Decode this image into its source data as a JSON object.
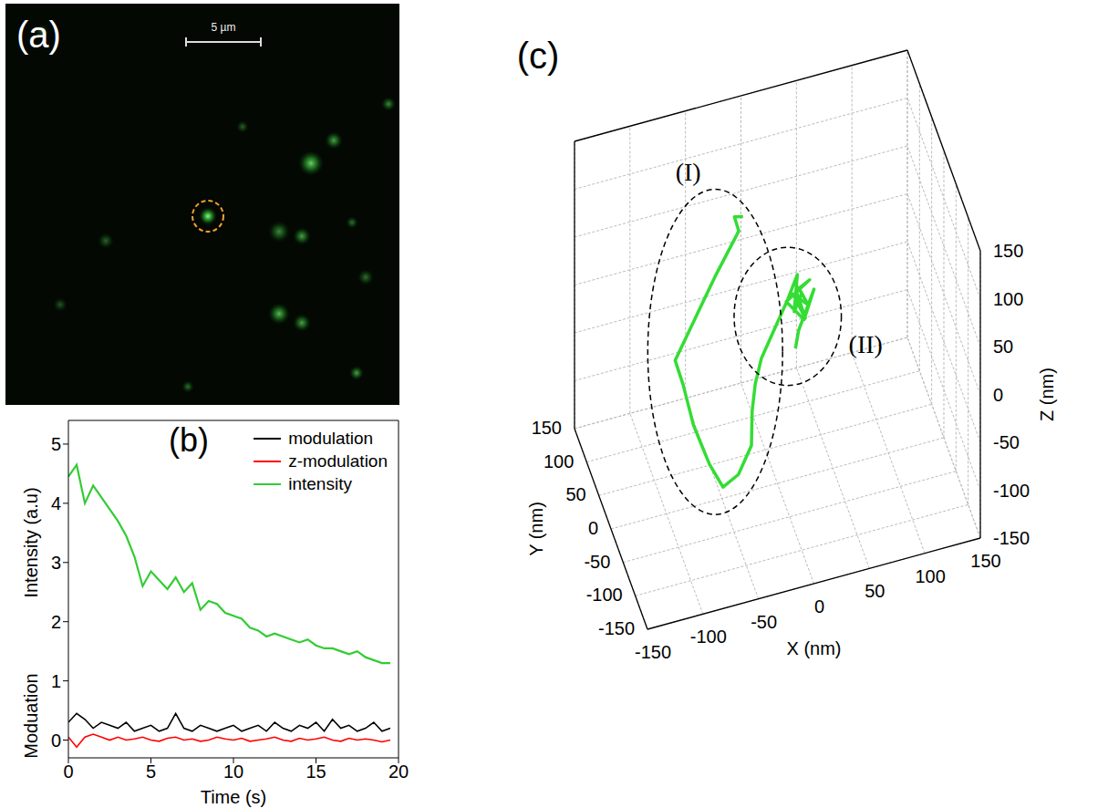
{
  "chart_data": [
    {
      "type": "image",
      "label": "(a)",
      "scale_bar": "5 µm"
    },
    {
      "type": "line",
      "label": "(b)",
      "x_label": "Time (s)",
      "y_labels": [
        "Intensity (a.u)",
        "Moduation"
      ],
      "x": [
        0,
        0.5,
        1,
        1.5,
        2,
        2.5,
        3,
        3.5,
        4,
        4.5,
        5,
        5.5,
        6,
        6.5,
        7,
        7.5,
        8,
        8.5,
        9,
        9.5,
        10,
        10.5,
        11,
        11.5,
        12,
        12.5,
        13,
        13.5,
        14,
        14.5,
        15,
        15.5,
        16,
        16.5,
        17,
        17.5,
        18,
        18.5,
        19,
        19.5
      ],
      "xlim": [
        0,
        20
      ],
      "xticks": [
        0,
        5,
        10,
        15,
        20
      ],
      "ylim": [
        -0.3,
        5.4
      ],
      "yticks": [
        0,
        1,
        2,
        3,
        4,
        5
      ],
      "legend": "top-right",
      "series": [
        {
          "name": "modulation",
          "color": "#000000",
          "values": [
            0.3,
            0.45,
            0.35,
            0.2,
            0.3,
            0.25,
            0.2,
            0.3,
            0.15,
            0.2,
            0.25,
            0.15,
            0.2,
            0.45,
            0.2,
            0.15,
            0.25,
            0.2,
            0.15,
            0.2,
            0.25,
            0.15,
            0.2,
            0.25,
            0.15,
            0.3,
            0.2,
            0.15,
            0.25,
            0.2,
            0.3,
            0.15,
            0.35,
            0.2,
            0.25,
            0.15,
            0.2,
            0.3,
            0.15,
            0.2
          ]
        },
        {
          "name": "z-modulation",
          "color": "#ff0000",
          "values": [
            0.05,
            -0.12,
            0.05,
            0.1,
            0.05,
            0,
            0.05,
            0,
            0.02,
            0.05,
            0,
            -0.02,
            0.03,
            0.05,
            0,
            0.02,
            -0.02,
            0,
            0.05,
            0.02,
            0,
            0.03,
            -0.02,
            0,
            0.02,
            0.05,
            0,
            -0.02,
            0.03,
            0,
            0.02,
            0.05,
            0,
            -0.02,
            0.03,
            0,
            0.02,
            0,
            -0.03,
            0
          ]
        },
        {
          "name": "intensity",
          "color": "#33cc33",
          "values": [
            4.45,
            4.65,
            4.0,
            4.3,
            4.1,
            3.9,
            3.7,
            3.45,
            3.1,
            2.6,
            2.85,
            2.7,
            2.55,
            2.75,
            2.5,
            2.65,
            2.2,
            2.35,
            2.3,
            2.15,
            2.1,
            2.05,
            1.9,
            1.85,
            1.75,
            1.8,
            1.75,
            1.7,
            1.65,
            1.7,
            1.6,
            1.55,
            1.55,
            1.5,
            1.45,
            1.5,
            1.4,
            1.35,
            1.3,
            1.3
          ]
        }
      ]
    },
    {
      "type": "line3d",
      "label": "(c)",
      "x_label": "X (nm)",
      "y_label": "Y (nm)",
      "z_label": "Z (nm)",
      "xlim": [
        -150,
        150
      ],
      "ylim": [
        -150,
        150
      ],
      "zlim": [
        -150,
        150
      ],
      "xticks": [
        -150,
        -100,
        -50,
        0,
        50,
        100,
        150
      ],
      "yticks": [
        -150,
        -100,
        -50,
        0,
        50,
        100,
        150
      ],
      "zticks": [
        -150,
        -100,
        -50,
        0,
        50,
        100,
        150
      ],
      "grid": true,
      "color": "#33dd33",
      "segments": [
        {
          "label": "(I)",
          "x": [
            -20,
            -30,
            -25,
            -50,
            -70,
            -90,
            -85,
            -80,
            -70,
            -60,
            -45,
            -30,
            -25,
            -20
          ],
          "y": [
            50,
            40,
            45,
            30,
            20,
            10,
            0,
            -20,
            -40,
            -50,
            -45,
            -30,
            -10,
            0
          ],
          "z": [
            100,
            110,
            90,
            60,
            30,
            0,
            -20,
            -50,
            -80,
            -100,
            -95,
            -80,
            -60,
            -40
          ]
        },
        {
          "label": "(II)",
          "x": [
            -10,
            0,
            10,
            20,
            30,
            25,
            35,
            30,
            40,
            25,
            35,
            30,
            40,
            20,
            35,
            45,
            30,
            25
          ],
          "y": [
            20,
            30,
            40,
            50,
            55,
            45,
            60,
            50,
            55,
            50,
            45,
            60,
            50,
            55,
            50,
            55,
            50,
            40
          ],
          "z": [
            -30,
            -20,
            -10,
            0,
            20,
            -10,
            -5,
            10,
            -15,
            5,
            -20,
            0,
            15,
            -5,
            -25,
            0,
            -35,
            -45
          ]
        }
      ]
    }
  ]
}
